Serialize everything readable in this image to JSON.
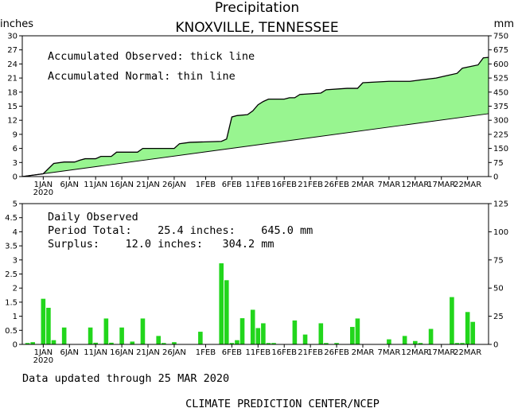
{
  "title": "Precipitation",
  "subtitle": "KNOXVILLE, TENNESSEE",
  "colors": {
    "fill": "#98f590",
    "bar": "#22d61c",
    "line": "#000000"
  },
  "x_ticks": [
    {
      "label": "1JAN",
      "day": 0
    },
    {
      "label": "6JAN",
      "day": 5
    },
    {
      "label": "11JAN",
      "day": 10
    },
    {
      "label": "16JAN",
      "day": 15
    },
    {
      "label": "21JAN",
      "day": 20
    },
    {
      "label": "26JAN",
      "day": 25
    },
    {
      "label": "1FEB",
      "day": 31
    },
    {
      "label": "6FEB",
      "day": 36
    },
    {
      "label": "11FEB",
      "day": 41
    },
    {
      "label": "16FEB",
      "day": 46
    },
    {
      "label": "21FEB",
      "day": 51
    },
    {
      "label": "26FEB",
      "day": 56
    },
    {
      "label": "2MAR",
      "day": 61
    },
    {
      "label": "7MAR",
      "day": 66
    },
    {
      "label": "12MAR",
      "day": 71
    },
    {
      "label": "17MAR",
      "day": 76
    },
    {
      "label": "22MAR",
      "day": 81
    }
  ],
  "x_year_label": "2020",
  "chart_data": [
    {
      "type": "area",
      "name": "accumulated",
      "left_unit": "inches",
      "right_unit": "mm",
      "ylim": [
        0,
        30
      ],
      "left_ticks": [
        "0",
        "3",
        "6",
        "9",
        "12",
        "15",
        "18",
        "21",
        "24",
        "27",
        "30"
      ],
      "right_ticks": [
        "0",
        "75",
        "150",
        "225",
        "300",
        "375",
        "450",
        "525",
        "600",
        "675",
        "750"
      ],
      "annotations": [
        "Accumulated Observed: thick line",
        "Accumulated Normal: thin line"
      ],
      "observed": [
        [
          -4,
          0
        ],
        [
          0,
          0.6
        ],
        [
          2,
          2.8
        ],
        [
          4,
          3.1
        ],
        [
          6,
          3.1
        ],
        [
          7,
          3.5
        ],
        [
          8,
          3.8
        ],
        [
          10,
          3.8
        ],
        [
          11,
          4.3
        ],
        [
          13,
          4.3
        ],
        [
          14,
          5.2
        ],
        [
          16,
          5.2
        ],
        [
          18,
          5.2
        ],
        [
          19,
          6.0
        ],
        [
          25,
          6.0
        ],
        [
          26,
          7.0
        ],
        [
          28,
          7.3
        ],
        [
          34,
          7.5
        ],
        [
          35,
          8.0
        ],
        [
          36,
          12.7
        ],
        [
          37,
          13.0
        ],
        [
          39,
          13.2
        ],
        [
          40,
          14.0
        ],
        [
          41,
          15.3
        ],
        [
          42,
          16.0
        ],
        [
          43,
          16.5
        ],
        [
          46,
          16.5
        ],
        [
          47,
          16.8
        ],
        [
          48,
          16.8
        ],
        [
          49,
          17.5
        ],
        [
          53,
          17.8
        ],
        [
          54,
          18.5
        ],
        [
          58,
          18.8
        ],
        [
          60,
          18.8
        ],
        [
          61,
          20.0
        ],
        [
          66,
          20.3
        ],
        [
          70,
          20.3
        ],
        [
          72,
          20.6
        ],
        [
          75,
          21.0
        ],
        [
          77,
          21.5
        ],
        [
          79,
          22.0
        ],
        [
          80,
          23.1
        ],
        [
          83,
          23.8
        ],
        [
          84,
          25.3
        ],
        [
          85,
          25.4
        ]
      ],
      "normal": [
        [
          -4,
          0
        ],
        [
          85,
          13.4
        ]
      ]
    },
    {
      "type": "bar",
      "name": "daily",
      "left_unit": "",
      "ylim": [
        0,
        5
      ],
      "left_ticks": [
        "0",
        "0.5",
        "1",
        "1.5",
        "2",
        "2.5",
        "3",
        "3.5",
        "4",
        "4.5",
        "5"
      ],
      "right_ticks": [
        "0",
        "25",
        "50",
        "75",
        "100",
        "125"
      ],
      "right_max": 125,
      "annotations": [
        "Daily Observed",
        "Period Total:    25.4 inches:    645.0 mm",
        "Surplus:    12.0 inches:   304.2 mm"
      ],
      "days": [
        -3,
        -2,
        0,
        1,
        2,
        4,
        9,
        10,
        12,
        13,
        15,
        17,
        19,
        22,
        23,
        25,
        30,
        34,
        35,
        36,
        37,
        38,
        40,
        41,
        42,
        43,
        44,
        48,
        50,
        53,
        54,
        56,
        59,
        60,
        66,
        69,
        71,
        72,
        74,
        78,
        79,
        80,
        81,
        82
      ],
      "values": [
        0.05,
        0.08,
        1.62,
        1.3,
        0.15,
        0.6,
        0.6,
        0.06,
        0.92,
        0.06,
        0.6,
        0.1,
        0.92,
        0.3,
        0.05,
        0.08,
        0.45,
        2.88,
        2.28,
        0.05,
        0.15,
        0.93,
        1.23,
        0.58,
        0.75,
        0.05,
        0.05,
        0.85,
        0.35,
        0.75,
        0.05,
        0.05,
        0.62,
        0.92,
        0.18,
        0.3,
        0.12,
        0.05,
        0.55,
        1.68,
        0.05,
        0.05,
        1.15,
        0.8
      ]
    }
  ],
  "footer_updated": "Data updated through 25 MAR 2020",
  "footer_credit": "CLIMATE PREDICTION CENTER/NCEP"
}
